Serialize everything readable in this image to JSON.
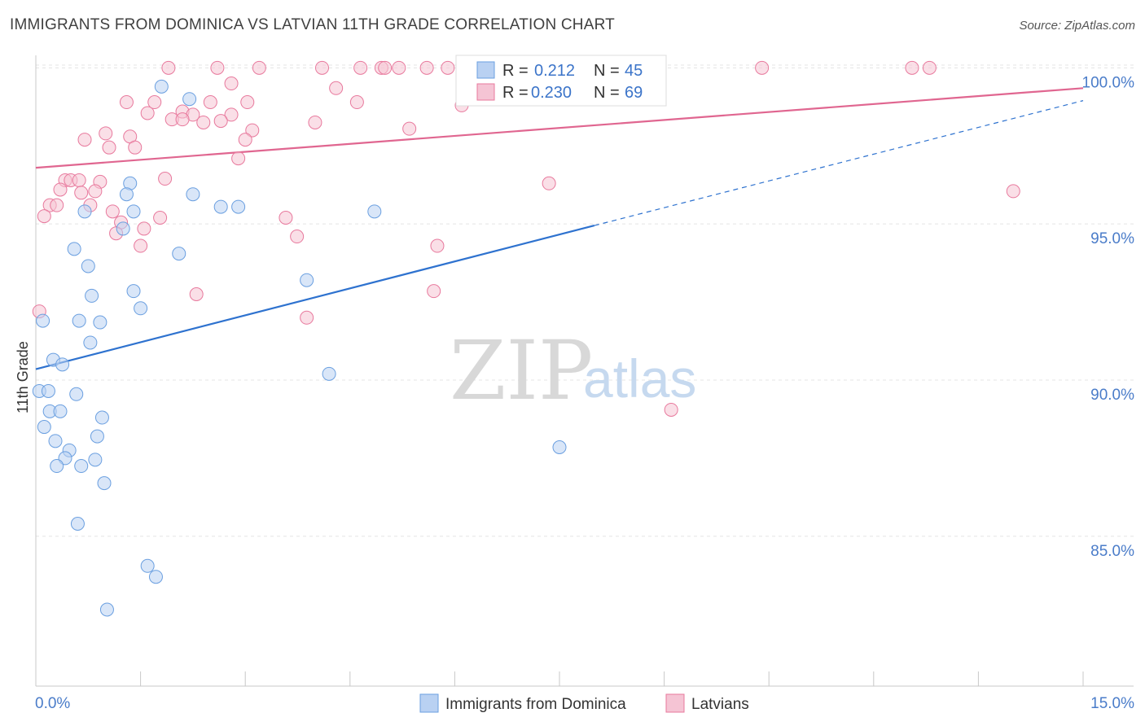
{
  "title": "IMMIGRANTS FROM DOMINICA VS LATVIAN 11TH GRADE CORRELATION CHART",
  "source": "Source: ZipAtlas.com",
  "watermark": {
    "zip": "ZIP",
    "atlas": "atlas"
  },
  "colors": {
    "blue": "#6a9fe0",
    "blue_fill": "#b9d1f2",
    "pink": "#e8799d",
    "pink_fill": "#f5c4d4",
    "blue_line": "#2e72cf",
    "pink_line": "#e06690",
    "tick_text": "#4a7cc9"
  },
  "chart_data": {
    "type": "scatter",
    "title": "IMMIGRANTS FROM DOMINICA VS LATVIAN 11TH GRADE CORRELATION CHART",
    "xlabel": "",
    "ylabel": "11th Grade",
    "xlim": [
      0,
      15
    ],
    "ylim": [
      80.2,
      100.4
    ],
    "x_tick_labels": [
      "0.0%",
      "15.0%"
    ],
    "y_ticks": [
      85,
      90,
      95,
      100
    ],
    "y_tick_labels": [
      "85.0%",
      "90.0%",
      "95.0%",
      "100.0%"
    ],
    "grid": true,
    "legend_position": "bottom",
    "stats": [
      {
        "r_label": "R =",
        "r": "0.212",
        "n_label": "N =",
        "n": "45"
      },
      {
        "r_label": "R =",
        "r": "0.230",
        "n_label": "N =",
        "n": "69"
      }
    ],
    "series": [
      {
        "name": "Immigrants from Dominica",
        "color": "blue",
        "trend": {
          "x0": 0,
          "y0": 90.35,
          "x1": 8.0,
          "y1": 94.95,
          "x_end": 15.0,
          "y_end": 98.95
        },
        "points": [
          [
            1.8,
            99.4
          ],
          [
            2.2,
            99.0
          ],
          [
            1.35,
            96.3
          ],
          [
            1.3,
            95.95
          ],
          [
            2.25,
            95.95
          ],
          [
            2.65,
            95.55
          ],
          [
            2.9,
            95.55
          ],
          [
            0.7,
            95.4
          ],
          [
            1.4,
            95.4
          ],
          [
            4.85,
            95.4
          ],
          [
            1.25,
            94.85
          ],
          [
            0.55,
            94.2
          ],
          [
            2.05,
            94.05
          ],
          [
            0.75,
            93.65
          ],
          [
            3.88,
            93.2
          ],
          [
            1.4,
            92.85
          ],
          [
            0.8,
            92.7
          ],
          [
            1.5,
            92.3
          ],
          [
            0.1,
            91.9
          ],
          [
            0.62,
            91.9
          ],
          [
            0.92,
            91.85
          ],
          [
            0.78,
            91.2
          ],
          [
            0.25,
            90.65
          ],
          [
            0.38,
            90.5
          ],
          [
            4.2,
            90.2
          ],
          [
            0.05,
            89.65
          ],
          [
            0.18,
            89.65
          ],
          [
            0.58,
            89.55
          ],
          [
            0.2,
            89.0
          ],
          [
            0.35,
            89.0
          ],
          [
            0.95,
            88.8
          ],
          [
            0.12,
            88.5
          ],
          [
            0.88,
            88.2
          ],
          [
            0.28,
            88.05
          ],
          [
            0.48,
            87.75
          ],
          [
            7.5,
            87.85
          ],
          [
            0.42,
            87.5
          ],
          [
            0.85,
            87.45
          ],
          [
            0.3,
            87.25
          ],
          [
            0.65,
            87.25
          ],
          [
            0.98,
            86.7
          ],
          [
            0.6,
            85.4
          ],
          [
            1.6,
            84.05
          ],
          [
            1.72,
            83.7
          ],
          [
            1.02,
            82.65
          ]
        ]
      },
      {
        "name": "Latvians",
        "color": "pink",
        "trend": {
          "x0": 0,
          "y0": 96.8,
          "x1": 15.0,
          "y1": 99.35
        },
        "points": [
          [
            1.9,
            100.0
          ],
          [
            2.6,
            100.0
          ],
          [
            3.2,
            100.0
          ],
          [
            4.1,
            100.0
          ],
          [
            4.65,
            100.0
          ],
          [
            4.95,
            100.0
          ],
          [
            5.2,
            100.0
          ],
          [
            5.6,
            100.0
          ],
          [
            5.9,
            100.0
          ],
          [
            5.0,
            100.0
          ],
          [
            6.3,
            100.0
          ],
          [
            7.9,
            100.0
          ],
          [
            10.4,
            100.0
          ],
          [
            12.55,
            100.0
          ],
          [
            12.8,
            100.0
          ],
          [
            2.8,
            99.5
          ],
          [
            4.3,
            99.35
          ],
          [
            1.3,
            98.9
          ],
          [
            1.7,
            98.9
          ],
          [
            2.5,
            98.9
          ],
          [
            3.03,
            98.9
          ],
          [
            4.6,
            98.9
          ],
          [
            6.1,
            98.8
          ],
          [
            1.6,
            98.55
          ],
          [
            2.1,
            98.6
          ],
          [
            2.25,
            98.5
          ],
          [
            2.8,
            98.5
          ],
          [
            1.95,
            98.35
          ],
          [
            2.1,
            98.35
          ],
          [
            2.4,
            98.25
          ],
          [
            2.65,
            98.3
          ],
          [
            4.0,
            98.25
          ],
          [
            5.35,
            98.05
          ],
          [
            1.35,
            97.8
          ],
          [
            3.1,
            98.0
          ],
          [
            0.7,
            97.7
          ],
          [
            1.0,
            97.9
          ],
          [
            3.0,
            97.7
          ],
          [
            1.05,
            97.45
          ],
          [
            1.42,
            97.45
          ],
          [
            2.9,
            97.1
          ],
          [
            1.85,
            96.45
          ],
          [
            0.42,
            96.4
          ],
          [
            0.5,
            96.4
          ],
          [
            0.62,
            96.4
          ],
          [
            0.92,
            96.35
          ],
          [
            7.35,
            96.3
          ],
          [
            0.35,
            96.1
          ],
          [
            0.85,
            96.05
          ],
          [
            0.65,
            96.0
          ],
          [
            14.0,
            96.05
          ],
          [
            0.2,
            95.6
          ],
          [
            0.3,
            95.6
          ],
          [
            0.78,
            95.6
          ],
          [
            1.1,
            95.4
          ],
          [
            0.12,
            95.25
          ],
          [
            1.78,
            95.2
          ],
          [
            3.58,
            95.2
          ],
          [
            1.22,
            95.05
          ],
          [
            1.55,
            94.85
          ],
          [
            1.15,
            94.7
          ],
          [
            3.74,
            94.6
          ],
          [
            1.5,
            94.3
          ],
          [
            5.75,
            94.3
          ],
          [
            2.3,
            92.75
          ],
          [
            5.7,
            92.85
          ],
          [
            0.05,
            92.2
          ],
          [
            3.88,
            92.0
          ],
          [
            9.1,
            89.05
          ]
        ]
      }
    ]
  }
}
